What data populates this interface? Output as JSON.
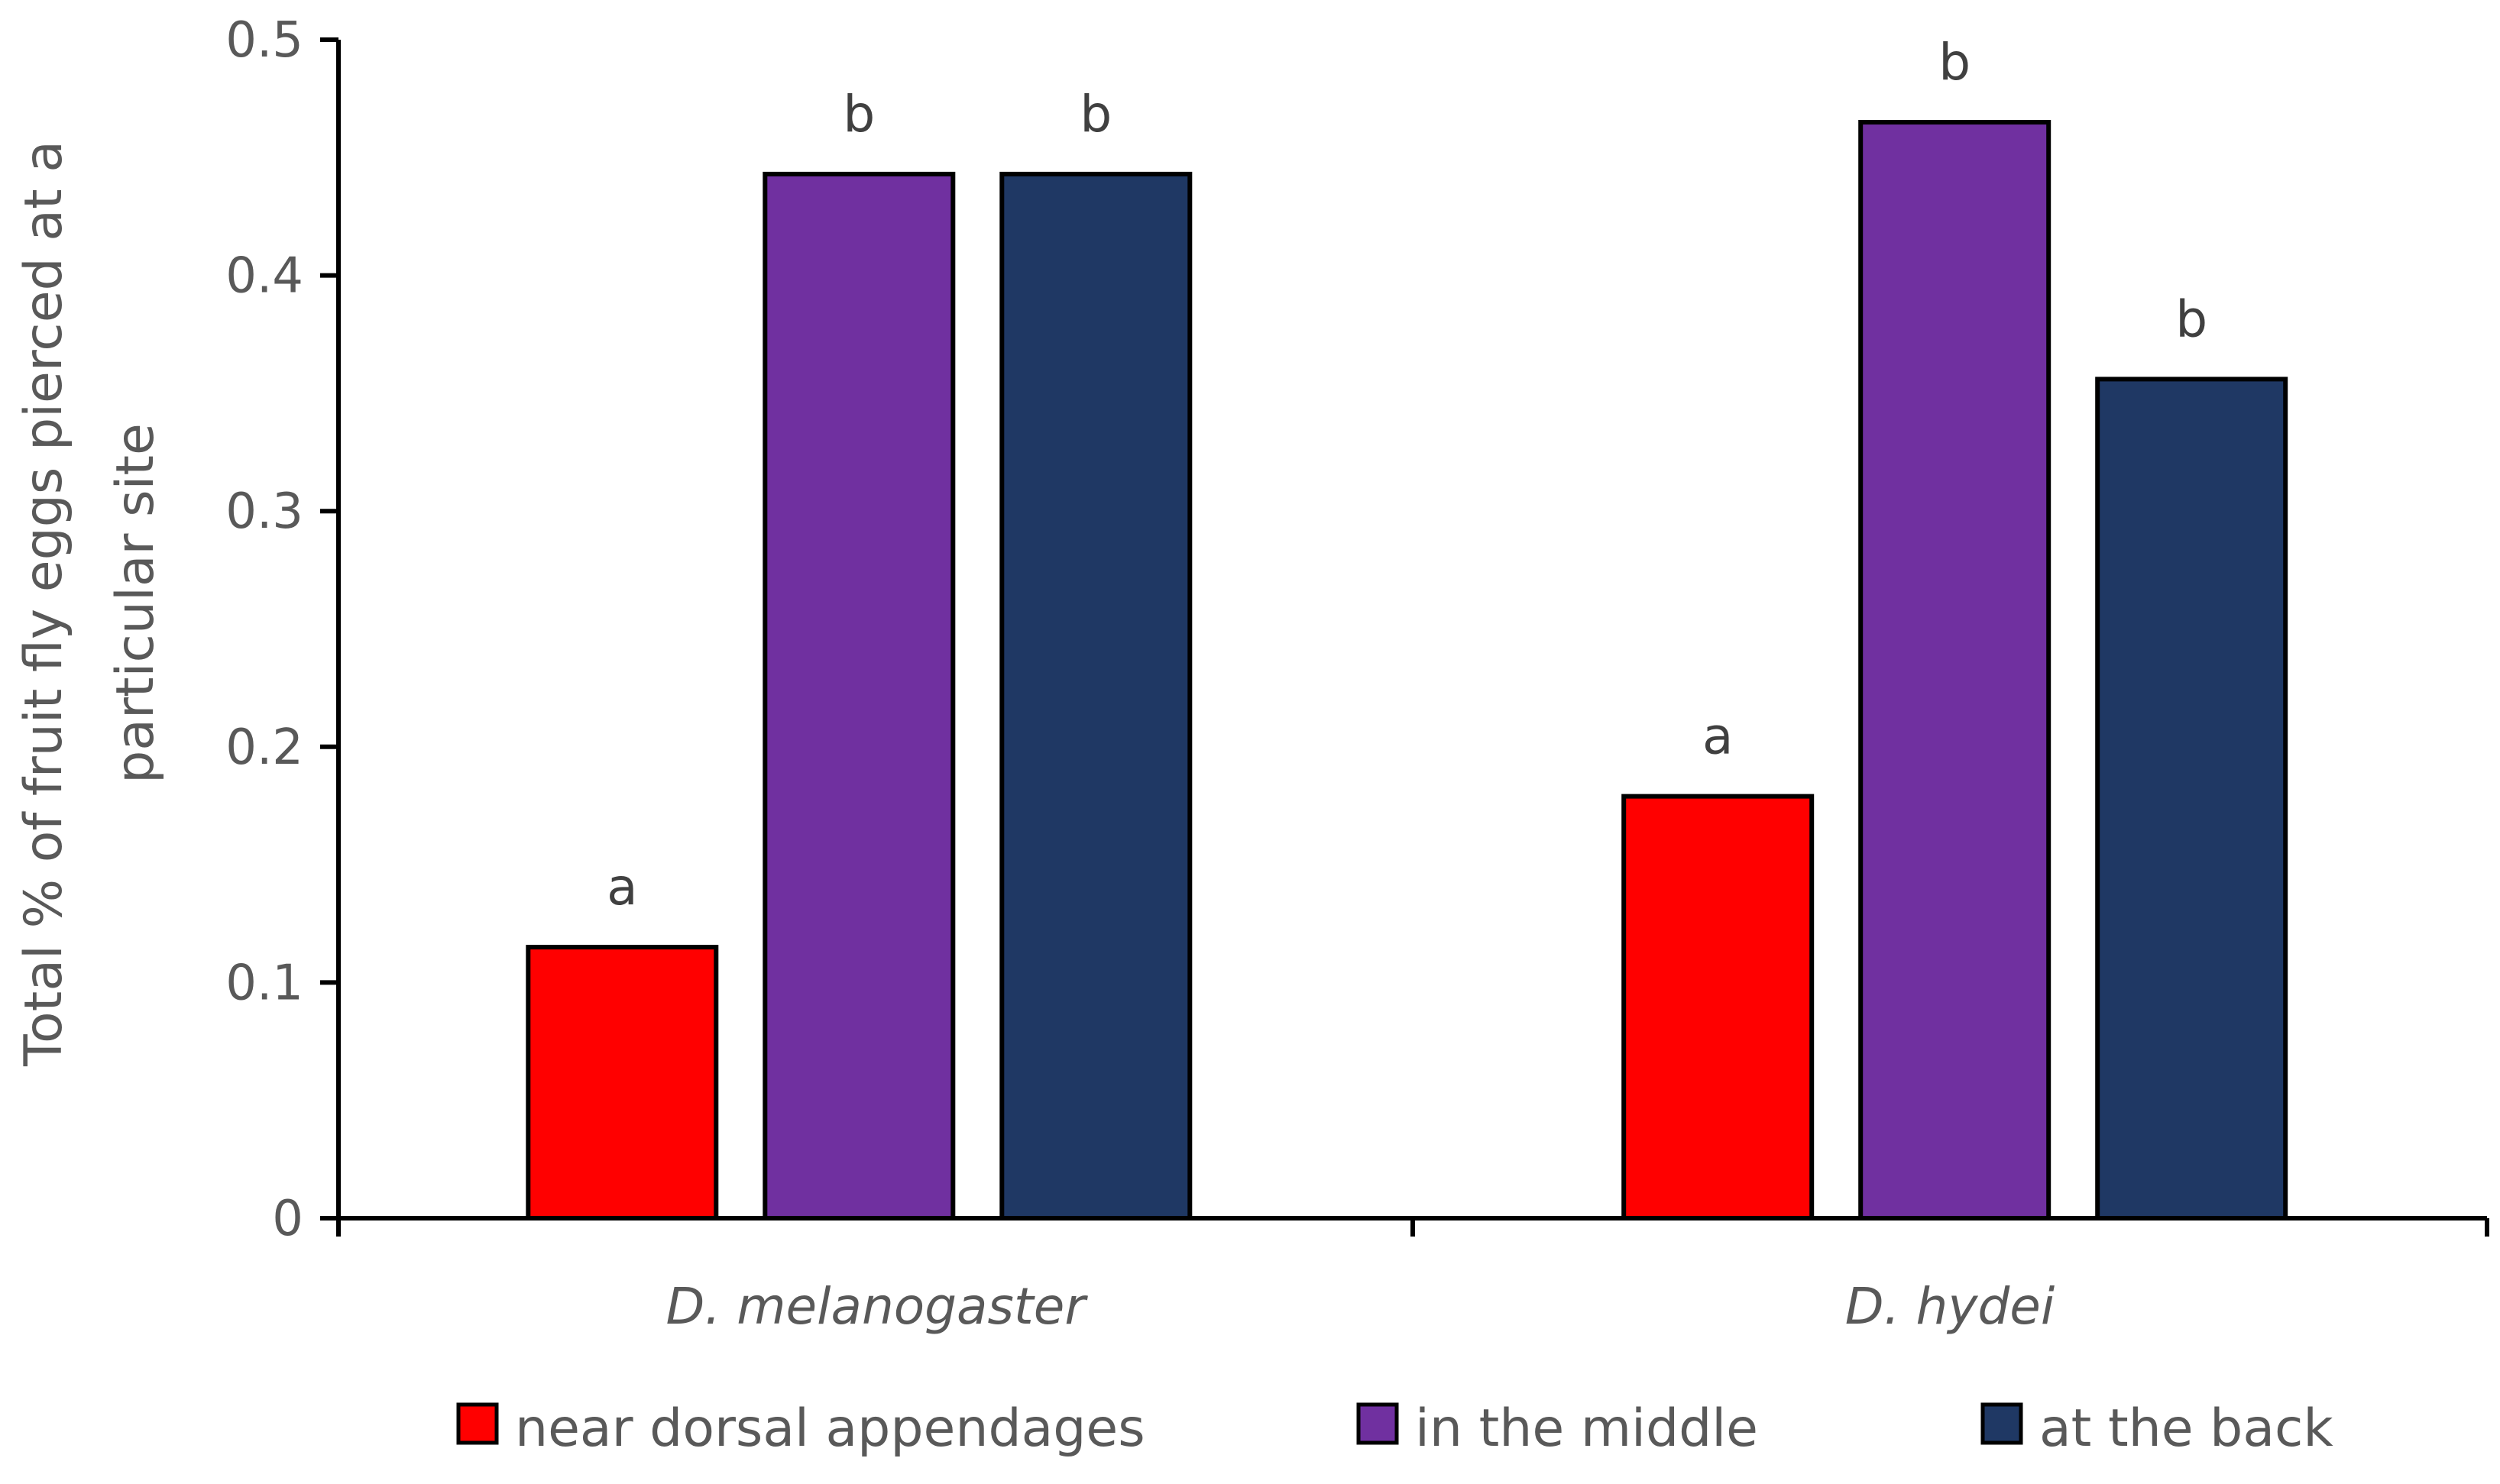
{
  "chart_data": {
    "type": "bar",
    "title": "",
    "xlabel": "",
    "ylabel_lines": [
      "Total % of fruit fly eggs  pierced at a",
      "particular  site"
    ],
    "ylim": [
      0,
      0.5
    ],
    "yticks": [
      0,
      0.1,
      0.2,
      0.3,
      0.4,
      0.5
    ],
    "ytick_labels": [
      "0",
      "0.1",
      "0.2",
      "0.3",
      "0.4",
      "0.5"
    ],
    "categories": [
      "D. melanogaster",
      "D. hydei"
    ],
    "series": [
      {
        "name": "near dorsal appendages",
        "color": "#ff0000",
        "values": [
          0.115,
          0.179
        ],
        "labels": [
          "a",
          "a"
        ]
      },
      {
        "name": "in the middle",
        "color": "#7030a0",
        "values": [
          0.443,
          0.465
        ],
        "labels": [
          "b",
          "b"
        ]
      },
      {
        "name": "at the back",
        "color": "#1f3864",
        "values": [
          0.443,
          0.356
        ],
        "labels": [
          "b",
          "b"
        ]
      }
    ],
    "legend_position": "bottom",
    "grid": false
  }
}
